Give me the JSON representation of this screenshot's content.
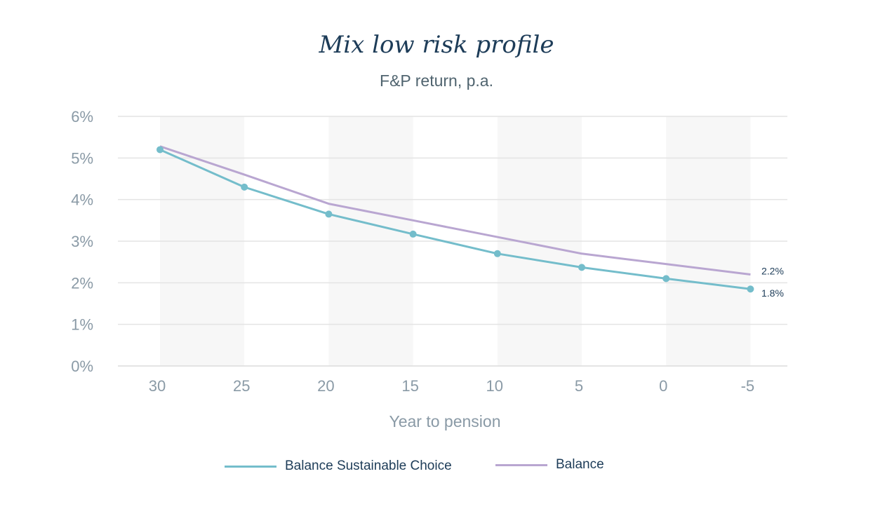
{
  "chart_data": {
    "type": "line",
    "title": "Mix low risk profile",
    "subtitle": "F&P return, p.a.",
    "xlabel": "Year to pension",
    "ylabel": "",
    "categories": [
      "30",
      "25",
      "20",
      "15",
      "10",
      "5",
      "0",
      "-5"
    ],
    "y_ticks": [
      "0%",
      "1%",
      "2%",
      "3%",
      "4%",
      "5%",
      "6%"
    ],
    "ylim": [
      0,
      6
    ],
    "grid": true,
    "legend_position": "bottom",
    "series": [
      {
        "name": "Balance Sustainable Choice",
        "values": [
          5.2,
          4.3,
          3.65,
          3.17,
          2.7,
          2.37,
          2.1,
          1.85
        ],
        "color": "#74bdcb",
        "markers": true,
        "end_label": "1.8%"
      },
      {
        "name": "Balance",
        "values": [
          5.28,
          4.6,
          3.9,
          3.5,
          3.1,
          2.7,
          2.45,
          2.2
        ],
        "color": "#b9a6d1",
        "markers": false,
        "end_label": "2.2%"
      }
    ]
  }
}
